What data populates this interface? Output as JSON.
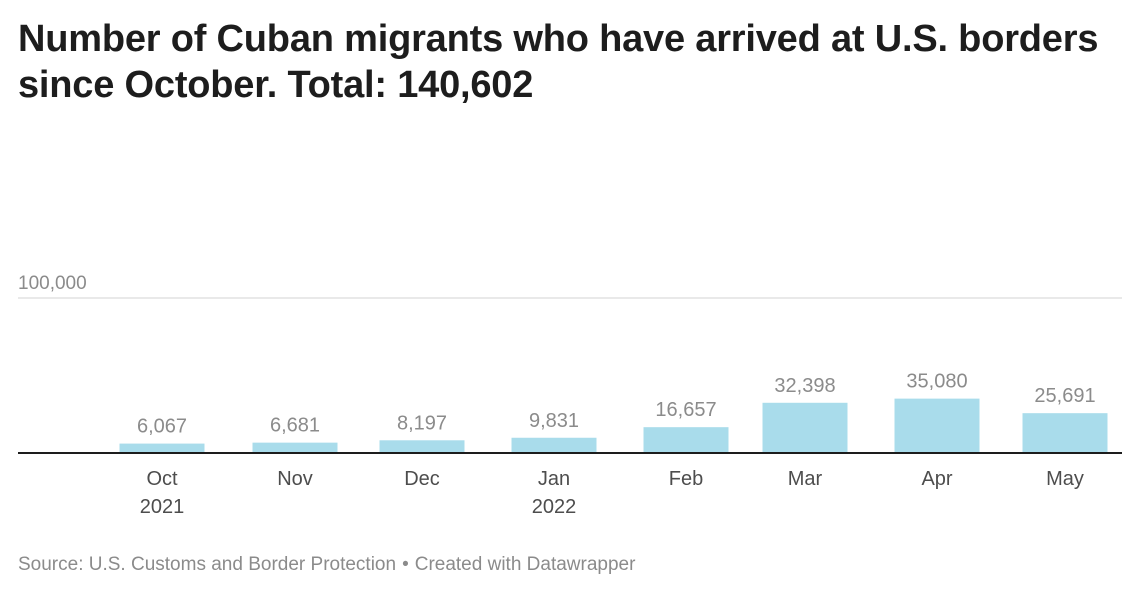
{
  "title": "Number of Cuban migrants who have arrived at U.S. borders since October. Total: 140,602",
  "chart_data": {
    "type": "bar",
    "title": "Number of Cuban migrants who have arrived at U.S. borders since October. Total: 140,602",
    "categories": [
      "Oct\n2021",
      "Nov",
      "Dec",
      "Jan\n2022",
      "Feb",
      "Mar",
      "Apr",
      "May"
    ],
    "values": [
      6067,
      6681,
      8197,
      9831,
      16657,
      32398,
      35080,
      25691
    ],
    "value_labels": [
      "6,067",
      "6,681",
      "8,197",
      "9,831",
      "16,657",
      "32,398",
      "35,080",
      "25,691"
    ],
    "ylim": [
      0,
      100000
    ],
    "y_ticks": [
      100000
    ],
    "y_tick_labels": [
      "100,000"
    ],
    "xlabel": "",
    "ylabel": "",
    "grid": true,
    "colors": {
      "bar": "#a9dceb",
      "value_label": "#8b8b8b",
      "tick_label": "#8b8b8b",
      "category_label": "#4d4d4d",
      "gridline": "#e2e2e2",
      "baseline": "#1d1d1d"
    }
  },
  "footer": {
    "source": "Source: U.S. Customs and Border Protection",
    "separator": "•",
    "credit": "Created with Datawrapper"
  }
}
